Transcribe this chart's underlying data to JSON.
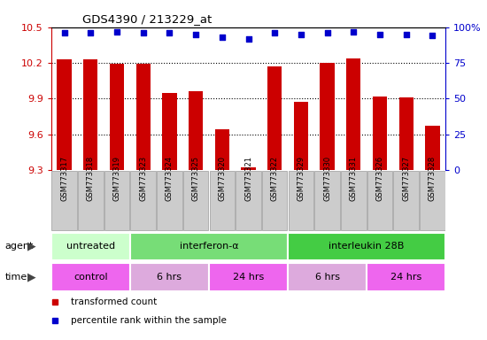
{
  "title": "GDS4390 / 213229_at",
  "samples": [
    "GSM773317",
    "GSM773318",
    "GSM773319",
    "GSM773323",
    "GSM773324",
    "GSM773325",
    "GSM773320",
    "GSM773321",
    "GSM773322",
    "GSM773329",
    "GSM773330",
    "GSM773331",
    "GSM773326",
    "GSM773327",
    "GSM773328"
  ],
  "bar_values": [
    10.23,
    10.23,
    10.19,
    10.19,
    9.95,
    9.96,
    9.64,
    9.32,
    10.17,
    9.87,
    10.2,
    10.24,
    9.92,
    9.91,
    9.67
  ],
  "percentile_values": [
    96,
    96,
    97,
    96,
    96,
    95,
    93,
    92,
    96,
    95,
    96,
    97,
    95,
    95,
    94
  ],
  "bar_color": "#cc0000",
  "dot_color": "#0000cc",
  "ylim_left": [
    9.3,
    10.5
  ],
  "ylim_right": [
    0,
    100
  ],
  "yticks_left": [
    9.3,
    9.6,
    9.9,
    10.2,
    10.5
  ],
  "ytick_labels_left": [
    "9.3",
    "9.6",
    "9.9",
    "10.2",
    "10.5"
  ],
  "ytick_labels_right": [
    "0",
    "25",
    "50",
    "75",
    "100%"
  ],
  "grid_values": [
    9.6,
    9.9,
    10.2
  ],
  "agent_groups": [
    {
      "label": "untreated",
      "start": 0,
      "end": 3,
      "color": "#ccffcc"
    },
    {
      "label": "interferon-α",
      "start": 3,
      "end": 9,
      "color": "#77dd77"
    },
    {
      "label": "interleukin 28B",
      "start": 9,
      "end": 15,
      "color": "#44cc44"
    }
  ],
  "time_groups": [
    {
      "label": "control",
      "start": 0,
      "end": 3,
      "color": "#ee66ee"
    },
    {
      "label": "6 hrs",
      "start": 3,
      "end": 6,
      "color": "#ddaadd"
    },
    {
      "label": "24 hrs",
      "start": 6,
      "end": 9,
      "color": "#ee66ee"
    },
    {
      "label": "6 hrs",
      "start": 9,
      "end": 12,
      "color": "#ddaadd"
    },
    {
      "label": "24 hrs",
      "start": 12,
      "end": 15,
      "color": "#ee66ee"
    }
  ],
  "legend_items": [
    {
      "label": "transformed count",
      "color": "#cc0000"
    },
    {
      "label": "percentile rank within the sample",
      "color": "#0000cc"
    }
  ],
  "bg_color": "#ffffff",
  "plot_bg_color": "#ffffff",
  "xticklabel_bg": "#cccccc",
  "agent_label": "agent",
  "time_label": "time"
}
